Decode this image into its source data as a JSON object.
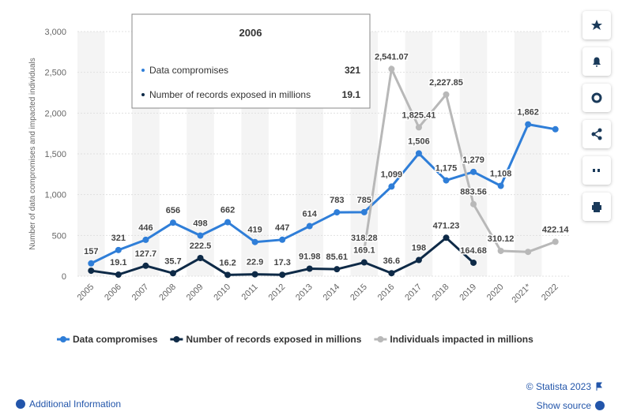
{
  "chart_data": {
    "type": "line",
    "y_label": "Number of data compromises and impacted individuals",
    "categories": [
      "2005",
      "2006",
      "2007",
      "2008",
      "2009",
      "2010",
      "2011",
      "2012",
      "2013",
      "2014",
      "2015",
      "2016",
      "2017",
      "2018",
      "2019",
      "2020",
      "2021*",
      "2022"
    ],
    "series": [
      {
        "name": "Data compromises",
        "color": "#2f7ed8",
        "values": [
          157,
          321,
          446,
          656,
          498,
          662,
          419,
          447,
          614,
          783,
          785,
          1099,
          1506,
          1175,
          1279,
          1108,
          1862,
          1802
        ],
        "value_labels": [
          "157",
          "321",
          "446",
          "656",
          "498",
          "662",
          "419",
          "447",
          "614",
          "783",
          "785",
          "1,099",
          "1,506",
          "1,175",
          "1,279",
          "1,108",
          "1,862",
          null
        ]
      },
      {
        "name": "Number of records exposed in millions",
        "color": "#0e2a47",
        "values": [
          67,
          19.1,
          127.7,
          35.7,
          222.5,
          16.2,
          22.9,
          17.3,
          91.98,
          85.61,
          169.1,
          36.6,
          198,
          471.23,
          164.68,
          null,
          null,
          null
        ],
        "value_labels": [
          null,
          "19.1",
          "127.7",
          "35.7",
          "222.5",
          "16.2",
          "22.9",
          "17.3",
          "91.98",
          "85.61",
          "169.1",
          "36.6",
          "198",
          "471.23",
          "164.68",
          null,
          null,
          null
        ]
      },
      {
        "name": "Individuals impacted in millions",
        "color": "#b8b8b8",
        "values": [
          null,
          null,
          null,
          null,
          null,
          null,
          null,
          null,
          null,
          null,
          318.28,
          2541.07,
          1825.41,
          2227.85,
          883.56,
          310.12,
          298,
          422.14
        ],
        "value_labels": [
          null,
          null,
          null,
          null,
          null,
          null,
          null,
          null,
          null,
          null,
          "318.28",
          "2,541.07",
          "1,825.41",
          "2,227.85",
          "883.56",
          "310.12",
          null,
          "422.14"
        ]
      }
    ],
    "ylim": [
      0,
      3000
    ],
    "yticks": [
      0,
      500,
      {
        "value": 1000,
        "label": "1,000"
      },
      {
        "value": 1500,
        "label": "1,500"
      },
      {
        "value": 2000,
        "label": "2,000"
      },
      {
        "value": 2500,
        "label": "2,500"
      },
      {
        "value": 3000,
        "label": "3,000"
      }
    ],
    "grid": true,
    "legend": "bottom"
  },
  "tooltip": {
    "title": "2006",
    "rows": [
      {
        "label": "Data compromises",
        "value": "321"
      },
      {
        "label": "Number of records exposed in millions",
        "value": "19.1"
      }
    ]
  },
  "footer": {
    "copyright": "© Statista 2023",
    "additional": "Additional Information",
    "source": "Show source"
  }
}
